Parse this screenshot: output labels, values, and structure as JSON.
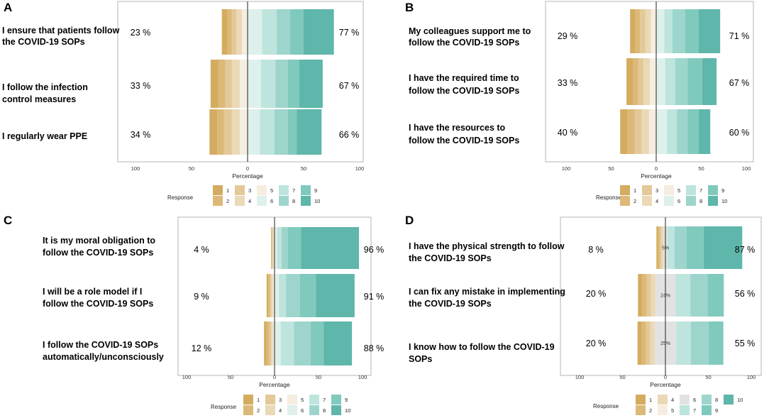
{
  "colors": {
    "1": "#d4ac5f",
    "2": "#dcb978",
    "3": "#e3c997",
    "4": "#ead9b6",
    "5": "#f5eddf",
    "6": "#ddf0ec",
    "7": "#bde4dd",
    "8": "#9dd5cc",
    "9": "#80c9bd",
    "10": "#5fb6aa",
    "6D": "#e2e2e2"
  },
  "chart_data": [
    {
      "panel": "A",
      "type": "bar",
      "orientation": "horizontal-diverging",
      "xlabel": "Percentage",
      "xticks": [
        "100",
        "50",
        "0",
        "50",
        "100"
      ],
      "legend_title": "Response",
      "legend_labels": [
        "1",
        "2",
        "3",
        "4",
        "5",
        "6",
        "7",
        "8",
        "9",
        "10"
      ],
      "items": [
        {
          "question": [
            "I ensure that patients follow",
            "the COVID-19 SOPs"
          ],
          "neg_label": "23 %",
          "pos_label": "77 %",
          "neg": [
            5,
            5,
            4,
            4,
            5
          ],
          "pos": [
            13,
            13,
            12,
            12,
            27
          ]
        },
        {
          "question": [
            "I follow the infection",
            "control measures"
          ],
          "neg_label": "33 %",
          "pos_label": "67 %",
          "neg": [
            7,
            7,
            6,
            6,
            7
          ],
          "pos": [
            12,
            13,
            11,
            10,
            21
          ]
        },
        {
          "question": [
            "I regularly wear PPE"
          ],
          "neg_label": "34 %",
          "pos_label": "66 %",
          "neg": [
            7,
            7,
            7,
            6,
            7
          ],
          "pos": [
            11,
            13,
            12,
            8,
            22
          ]
        }
      ]
    },
    {
      "panel": "B",
      "type": "bar",
      "orientation": "horizontal-diverging",
      "xlabel": "Percentage",
      "xticks": [
        "100",
        "50",
        "0",
        "50",
        "100"
      ],
      "legend_title": "Response",
      "legend_labels": [
        "1",
        "2",
        "3",
        "4",
        "5",
        "6",
        "7",
        "8",
        "9",
        "10"
      ],
      "items": [
        {
          "question": [
            "My colleagues support me to",
            "follow the COVID-19 SOPs"
          ],
          "neg_label": "29 %",
          "pos_label": "71 %",
          "neg": [
            6,
            6,
            6,
            5,
            6
          ],
          "pos": [
            9,
            9,
            14,
            15,
            24
          ]
        },
        {
          "question": [
            "I have the required time to",
            "follow the COVID-19 SOPs"
          ],
          "neg_label": "33 %",
          "pos_label": "67 %",
          "neg": [
            7,
            7,
            6,
            6,
            7
          ],
          "pos": [
            10,
            11,
            14,
            16,
            16
          ]
        },
        {
          "question": [
            "I have the resources to",
            "follow the COVID-19 SOPs"
          ],
          "neg_label": "40 %",
          "pos_label": "60 %",
          "neg": [
            8,
            8,
            8,
            8,
            8
          ],
          "pos": [
            12,
            11,
            12,
            12,
            13
          ]
        }
      ]
    },
    {
      "panel": "C",
      "type": "bar",
      "orientation": "horizontal-diverging",
      "xlabel": "Percentage",
      "xticks": [
        "100",
        "50",
        "0",
        "50",
        "100"
      ],
      "legend_title": "Response",
      "legend_labels": [
        "1",
        "2",
        "3",
        "4",
        "5",
        "6",
        "7",
        "8",
        "9",
        "10"
      ],
      "items": [
        {
          "question": [
            "It is my moral obligation to",
            "follow the COVID-19 SOPs"
          ],
          "neg_label": "4 %",
          "pos_label": "96 %",
          "neg": [
            1,
            1,
            1,
            1,
            0
          ],
          "pos": [
            3,
            5,
            7,
            15,
            66
          ]
        },
        {
          "question": [
            "I will be a role model if I",
            "follow the COVID-19 SOPs"
          ],
          "neg_label": "9 %",
          "pos_label": "91 %",
          "neg": [
            2,
            2,
            1,
            2,
            2
          ],
          "pos": [
            5,
            8,
            16,
            18,
            44
          ]
        },
        {
          "question": [
            "I follow the COVID-19 SOPs",
            "automatically/unconsciously"
          ],
          "neg_label": "12 %",
          "pos_label": "88 %",
          "neg": [
            2,
            2,
            2,
            3,
            3
          ],
          "pos": [
            7,
            15,
            19,
            15,
            32
          ]
        }
      ]
    },
    {
      "panel": "D",
      "type": "bar",
      "orientation": "horizontal-diverging",
      "xlabel": "Percentage",
      "xticks": [
        "100",
        "50",
        "0",
        "50",
        "100"
      ],
      "legend_title": "Response",
      "legend_labels": [
        "1",
        "2",
        "4",
        "5",
        "6",
        "7",
        "8",
        "9",
        "10"
      ],
      "legend_keys": [
        "1",
        "2",
        "4",
        "5",
        "6D",
        "7",
        "8",
        "9",
        "10"
      ],
      "items": [
        {
          "question": [
            "I have the physical strength to follow",
            "the COVID-19 SOPs"
          ],
          "neg_label": "8 %",
          "pos_label": "87 %",
          "neutral_label": "5%",
          "neg": [
            2,
            2,
            2,
            2
          ],
          "neutral": 5,
          "pos": [
            8,
            14,
            20,
            45
          ]
        },
        {
          "question": [
            "I can fix any mistake in implementing",
            "the COVID-19 SOPs"
          ],
          "neg_label": "20 %",
          "pos_label": "56 %",
          "neutral_label": "24%",
          "neg": [
            5,
            5,
            5,
            5
          ],
          "neutral": 24,
          "pos": [
            17,
            20,
            19,
            0
          ]
        },
        {
          "question": [
            "I know how to follow the  COVID-19",
            "SOPs"
          ],
          "neg_label": "20 %",
          "pos_label": "55 %",
          "neutral_label": "25%",
          "neg": [
            5,
            5,
            5,
            5
          ],
          "neutral": 25,
          "pos": [
            17,
            21,
            17,
            0
          ]
        }
      ]
    }
  ]
}
